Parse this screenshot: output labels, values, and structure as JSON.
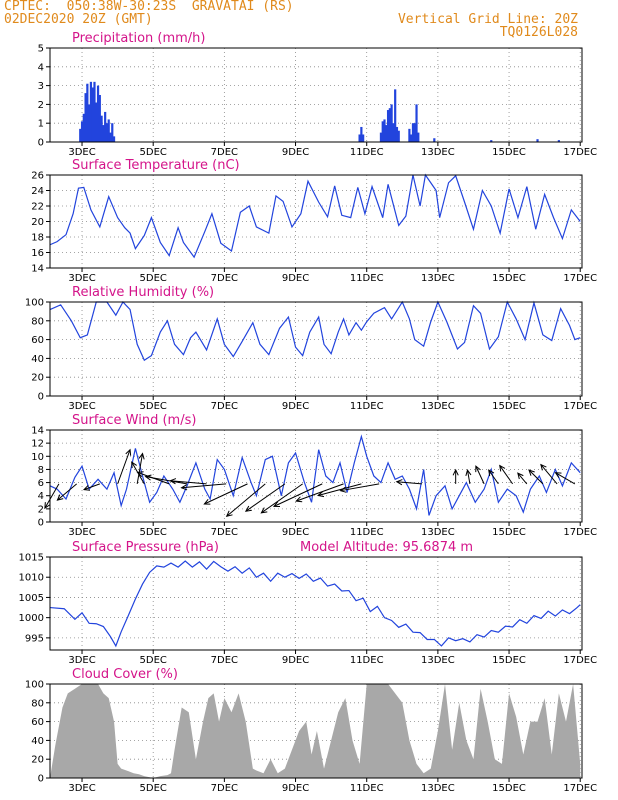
{
  "header": {
    "source": "CPTEC:",
    "coords": "050:38W-30:23S",
    "station": "GRAVATAI (RS)",
    "datetime": "02DEC2020 20Z (GMT)",
    "grid_note": "Vertical Grid Line: 20Z",
    "code": "TQ0126L028"
  },
  "colors": {
    "header": "#e08a1c",
    "panel_title": "#d4148a",
    "line": "#2244dd",
    "cloud": "#a8a8a8",
    "grid": "#888888"
  },
  "x_axis": {
    "start_day": 2.1,
    "end_day": 17.05,
    "labels": [
      {
        "day": 3,
        "label": "3DEC"
      },
      {
        "day": 5,
        "label": "5DEC"
      },
      {
        "day": 7,
        "label": "7DEC"
      },
      {
        "day": 9,
        "label": "9DEC"
      },
      {
        "day": 11,
        "label": "11DEC"
      },
      {
        "day": 13,
        "label": "13DEC"
      },
      {
        "day": 15,
        "label": "15DEC"
      },
      {
        "day": 17,
        "label": "17DEC"
      }
    ]
  },
  "chart_data": [
    {
      "id": "precip",
      "type": "bar",
      "title": "Precipitation (mm/h)",
      "ylim": [
        0,
        5
      ],
      "yticks": [
        0,
        1,
        2,
        3,
        4,
        5
      ],
      "grid": true,
      "x": [
        2.95,
        3.0,
        3.05,
        3.1,
        3.15,
        3.2,
        3.25,
        3.3,
        3.35,
        3.4,
        3.45,
        3.5,
        3.55,
        3.6,
        3.65,
        3.7,
        3.75,
        3.8,
        3.85,
        3.9,
        10.8,
        10.85,
        10.9,
        11.4,
        11.45,
        11.5,
        11.55,
        11.6,
        11.65,
        11.7,
        11.75,
        11.8,
        11.85,
        11.9,
        12.2,
        12.25,
        12.3,
        12.35,
        12.4,
        12.45,
        12.9,
        14.5,
        15.8,
        16.4
      ],
      "y": [
        0.7,
        1.1,
        1.5,
        2.6,
        3.1,
        2.0,
        3.2,
        2.9,
        3.2,
        2.1,
        3.0,
        2.5,
        1.4,
        0.9,
        1.6,
        1.0,
        1.2,
        0.5,
        1.0,
        0.3,
        0.4,
        0.8,
        0.4,
        0.5,
        1.1,
        1.2,
        0.9,
        1.7,
        1.8,
        2.0,
        1.0,
        2.8,
        0.8,
        0.6,
        0.7,
        0.4,
        1.0,
        1.0,
        2.0,
        0.5,
        0.2,
        0.1,
        0.15,
        0.1
      ]
    },
    {
      "id": "temp",
      "type": "line",
      "title": "Surface Temperature (nC)",
      "ylim": [
        14,
        26
      ],
      "yticks": [
        14,
        16,
        18,
        20,
        22,
        24,
        26
      ],
      "grid": true,
      "x": [
        2.1,
        2.3,
        2.55,
        2.75,
        2.9,
        3.05,
        3.25,
        3.5,
        3.75,
        4.0,
        4.2,
        4.35,
        4.5,
        4.75,
        4.95,
        5.2,
        5.45,
        5.7,
        5.85,
        6.15,
        6.45,
        6.65,
        6.9,
        7.2,
        7.45,
        7.7,
        7.9,
        8.25,
        8.45,
        8.65,
        8.9,
        9.15,
        9.35,
        9.65,
        9.9,
        10.1,
        10.3,
        10.55,
        10.75,
        10.95,
        11.15,
        11.45,
        11.6,
        11.9,
        12.1,
        12.3,
        12.5,
        12.65,
        12.8,
        12.95,
        13.05,
        13.3,
        13.5,
        13.75,
        14.0,
        14.25,
        14.5,
        14.75,
        15.0,
        15.25,
        15.5,
        15.75,
        16.0,
        16.25,
        16.5,
        16.75,
        17.0
      ],
      "y": [
        17.0,
        17.4,
        18.3,
        21.0,
        24.3,
        24.4,
        21.5,
        19.3,
        23.2,
        20.5,
        19.2,
        18.5,
        16.5,
        18.2,
        20.5,
        17.3,
        15.6,
        19.2,
        17.3,
        15.4,
        18.7,
        21.0,
        17.2,
        16.2,
        21.2,
        22.0,
        19.3,
        18.5,
        23.3,
        22.6,
        19.3,
        21.0,
        25.2,
        22.5,
        20.6,
        24.6,
        20.8,
        20.5,
        24.4,
        21.0,
        24.5,
        20.5,
        24.8,
        19.5,
        20.7,
        26.2,
        22.0,
        26.3,
        25.0,
        24.0,
        20.5,
        25.0,
        25.9,
        22.5,
        19.0,
        24.0,
        22.0,
        18.5,
        24.2,
        20.5,
        24.5,
        19.0,
        23.5,
        20.5,
        17.8,
        21.5,
        20.0
      ]
    },
    {
      "id": "rh",
      "type": "line",
      "title": "Relative Humidity (%)",
      "ylim": [
        0,
        100
      ],
      "yticks": [
        0,
        20,
        40,
        60,
        80,
        100
      ],
      "grid": true,
      "x": [
        2.1,
        2.4,
        2.7,
        2.95,
        3.15,
        3.4,
        3.7,
        3.95,
        4.15,
        4.35,
        4.55,
        4.75,
        4.95,
        5.2,
        5.4,
        5.6,
        5.85,
        6.05,
        6.2,
        6.5,
        6.8,
        7.0,
        7.25,
        7.5,
        7.8,
        8.0,
        8.25,
        8.55,
        8.8,
        9.0,
        9.2,
        9.4,
        9.65,
        9.8,
        10.0,
        10.2,
        10.35,
        10.5,
        10.7,
        10.85,
        11.0,
        11.2,
        11.5,
        11.7,
        12.0,
        12.2,
        12.35,
        12.6,
        12.8,
        13.0,
        13.25,
        13.55,
        13.75,
        14.0,
        14.2,
        14.45,
        14.7,
        14.95,
        15.2,
        15.45,
        15.7,
        15.95,
        16.2,
        16.45,
        16.7,
        16.85,
        17.0
      ],
      "y": [
        92,
        97,
        80,
        62,
        65,
        100,
        100,
        86,
        100,
        92,
        55,
        38,
        43,
        68,
        80,
        55,
        44,
        62,
        68,
        49,
        82,
        55,
        42,
        58,
        78,
        55,
        44,
        72,
        84,
        52,
        43,
        68,
        84,
        55,
        45,
        68,
        82,
        65,
        78,
        70,
        79,
        88,
        94,
        82,
        100,
        82,
        60,
        53,
        79,
        100,
        79,
        50,
        57,
        96,
        88,
        50,
        63,
        100,
        82,
        60,
        99,
        65,
        59,
        93,
        75,
        60,
        62
      ]
    },
    {
      "id": "wind",
      "type": "line",
      "title": "Surface Wind (m/s)",
      "ylim": [
        0,
        14
      ],
      "yticks": [
        0,
        2,
        4,
        6,
        8,
        10,
        12,
        14
      ],
      "grid": true,
      "x": [
        2.1,
        2.3,
        2.55,
        2.8,
        3.0,
        3.2,
        3.45,
        3.7,
        3.9,
        4.1,
        4.25,
        4.5,
        4.7,
        4.9,
        5.1,
        5.3,
        5.55,
        5.75,
        5.95,
        6.2,
        6.45,
        6.6,
        6.8,
        7.0,
        7.25,
        7.5,
        7.75,
        7.9,
        8.15,
        8.35,
        8.6,
        8.8,
        9.0,
        9.25,
        9.45,
        9.65,
        9.85,
        10.05,
        10.25,
        10.45,
        10.65,
        10.85,
        11.0,
        11.2,
        11.4,
        11.6,
        11.8,
        12.0,
        12.2,
        12.4,
        12.6,
        12.75,
        12.95,
        13.2,
        13.4,
        13.6,
        13.8,
        14.05,
        14.3,
        14.5,
        14.7,
        14.95,
        15.2,
        15.4,
        15.6,
        15.85,
        16.05,
        16.3,
        16.5,
        16.75,
        17.0
      ],
      "y": [
        5.5,
        5.0,
        3.5,
        6.8,
        8.5,
        5.0,
        6.5,
        5.0,
        7.5,
        2.5,
        5.0,
        11.2,
        7.0,
        3.0,
        4.5,
        7.0,
        5.0,
        3.0,
        5.5,
        9.0,
        5.0,
        3.5,
        9.5,
        8.0,
        4.0,
        9.8,
        6.0,
        4.0,
        9.5,
        10.0,
        4.0,
        9.0,
        10.5,
        6.0,
        3.0,
        11.0,
        7.0,
        6.0,
        9.0,
        4.5,
        9.0,
        13.0,
        10.0,
        7.0,
        6.0,
        9.0,
        6.5,
        7.0,
        5.0,
        2.0,
        8.0,
        1.0,
        4.0,
        5.5,
        2.0,
        4.0,
        6.0,
        3.0,
        5.0,
        8.0,
        3.0,
        5.0,
        4.0,
        1.5,
        5.0,
        7.0,
        4.5,
        8.0,
        5.5,
        9.0,
        7.5
      ]
    },
    {
      "id": "press",
      "type": "line",
      "title": "Surface Pressure (hPa)",
      "note": "Model Altitude: 95.6874 m",
      "ylim": [
        992,
        1015
      ],
      "yticks": [
        995,
        1000,
        1005,
        1010,
        1015
      ],
      "grid": true,
      "x": [
        2.1,
        2.5,
        2.8,
        3.0,
        3.2,
        3.4,
        3.6,
        3.8,
        3.95,
        4.1,
        4.3,
        4.5,
        4.7,
        4.9,
        5.1,
        5.3,
        5.5,
        5.7,
        5.9,
        6.1,
        6.3,
        6.5,
        6.7,
        6.9,
        7.1,
        7.3,
        7.5,
        7.7,
        7.9,
        8.1,
        8.3,
        8.5,
        8.7,
        8.9,
        9.1,
        9.3,
        9.5,
        9.7,
        9.9,
        10.1,
        10.3,
        10.5,
        10.7,
        10.9,
        11.1,
        11.3,
        11.5,
        11.7,
        11.9,
        12.1,
        12.3,
        12.5,
        12.7,
        12.9,
        13.1,
        13.3,
        13.5,
        13.7,
        13.9,
        14.1,
        14.3,
        14.5,
        14.7,
        14.9,
        15.1,
        15.3,
        15.5,
        15.7,
        15.9,
        16.1,
        16.3,
        16.5,
        16.7,
        16.9,
        17.0
      ],
      "y": [
        1002.5,
        1002.2,
        999.6,
        1001.2,
        998.6,
        998.5,
        997.8,
        995.3,
        993.0,
        996.5,
        1000.5,
        1004.6,
        1008.3,
        1011.2,
        1012.8,
        1012.5,
        1013.5,
        1012.5,
        1014.0,
        1012.5,
        1013.8,
        1012.0,
        1013.9,
        1012.6,
        1011.5,
        1012.6,
        1011.0,
        1012.3,
        1010.0,
        1011.0,
        1009.0,
        1011.0,
        1010.0,
        1010.9,
        1009.7,
        1010.8,
        1009.0,
        1009.8,
        1007.8,
        1008.3,
        1006.6,
        1006.7,
        1004.2,
        1004.8,
        1001.5,
        1002.8,
        1000.0,
        999.3,
        997.6,
        998.4,
        996.4,
        996.3,
        994.6,
        994.6,
        993.0,
        995.0,
        994.3,
        994.8,
        994.0,
        995.8,
        995.2,
        996.8,
        996.4,
        997.9,
        997.7,
        999.5,
        998.6,
        1000.5,
        999.8,
        1001.6,
        1000.4,
        1001.9,
        1001.0,
        1002.4,
        1003.2
      ]
    },
    {
      "id": "cloud",
      "type": "area",
      "title": "Cloud Cover (%)",
      "ylim": [
        0,
        100
      ],
      "yticks": [
        0,
        20,
        40,
        60,
        80,
        100
      ],
      "grid": true,
      "x": [
        2.1,
        2.25,
        2.45,
        2.6,
        2.8,
        3.0,
        3.2,
        3.45,
        3.6,
        3.75,
        3.9,
        4.0,
        4.1,
        4.25,
        4.45,
        4.6,
        4.75,
        5.0,
        5.2,
        5.4,
        5.5,
        5.6,
        5.8,
        6.0,
        6.2,
        6.4,
        6.55,
        6.7,
        6.85,
        7.0,
        7.2,
        7.4,
        7.6,
        7.8,
        7.9,
        8.1,
        8.3,
        8.5,
        8.7,
        8.9,
        9.1,
        9.3,
        9.45,
        9.6,
        9.8,
        10.0,
        10.2,
        10.4,
        10.6,
        10.8,
        11.0,
        11.2,
        11.4,
        11.6,
        11.8,
        12.0,
        12.2,
        12.4,
        12.6,
        12.8,
        13.0,
        13.2,
        13.4,
        13.6,
        13.8,
        14.0,
        14.2,
        14.4,
        14.6,
        14.8,
        15.0,
        15.2,
        15.4,
        15.6,
        15.8,
        16.0,
        16.2,
        16.4,
        16.6,
        16.8,
        17.0
      ],
      "y": [
        0,
        35,
        75,
        90,
        95,
        100,
        100,
        100,
        90,
        85,
        60,
        15,
        10,
        8,
        5,
        4,
        2,
        0,
        2,
        3,
        5,
        30,
        75,
        70,
        20,
        60,
        85,
        90,
        60,
        85,
        70,
        90,
        60,
        10,
        8,
        5,
        20,
        5,
        10,
        30,
        50,
        60,
        25,
        50,
        10,
        40,
        70,
        85,
        40,
        15,
        100,
        100,
        100,
        100,
        90,
        80,
        40,
        15,
        5,
        10,
        50,
        100,
        30,
        80,
        40,
        20,
        95,
        60,
        20,
        15,
        90,
        65,
        25,
        60,
        60,
        85,
        25,
        90,
        60,
        100,
        15
      ]
    }
  ],
  "wind_vectors": [
    {
      "day": 2.35,
      "dir": 240,
      "len": 1.0
    },
    {
      "day": 2.85,
      "dir": 220,
      "len": 0.9
    },
    {
      "day": 3.5,
      "dir": 200,
      "len": 0.6
    },
    {
      "day": 4.0,
      "dir": 70,
      "len": 1.3
    },
    {
      "day": 4.55,
      "dir": 80,
      "len": 1.1
    },
    {
      "day": 4.75,
      "dir": 120,
      "len": 0.9
    },
    {
      "day": 5.45,
      "dir": 160,
      "len": 1.2
    },
    {
      "day": 5.95,
      "dir": 170,
      "len": 1.5
    },
    {
      "day": 6.5,
      "dir": 175,
      "len": 1.3
    },
    {
      "day": 7.05,
      "dir": 185,
      "len": 1.6
    },
    {
      "day": 7.65,
      "dir": 205,
      "len": 1.7
    },
    {
      "day": 8.15,
      "dir": 220,
      "len": 1.8
    },
    {
      "day": 8.7,
      "dir": 215,
      "len": 1.7
    },
    {
      "day": 9.2,
      "dir": 215,
      "len": 1.8
    },
    {
      "day": 9.75,
      "dir": 205,
      "len": 1.9
    },
    {
      "day": 10.35,
      "dir": 200,
      "len": 1.8
    },
    {
      "day": 10.85,
      "dir": 195,
      "len": 1.6
    },
    {
      "day": 11.35,
      "dir": 190,
      "len": 1.4
    },
    {
      "day": 12.55,
      "dir": 175,
      "len": 0.9
    },
    {
      "day": 13.5,
      "dir": 90,
      "len": 0.5
    },
    {
      "day": 13.9,
      "dir": 100,
      "len": 0.5
    },
    {
      "day": 14.3,
      "dir": 115,
      "len": 0.7
    },
    {
      "day": 14.7,
      "dir": 125,
      "len": 0.6
    },
    {
      "day": 15.1,
      "dir": 125,
      "len": 0.8
    },
    {
      "day": 15.5,
      "dir": 130,
      "len": 0.5
    },
    {
      "day": 15.95,
      "dir": 135,
      "len": 0.7
    },
    {
      "day": 16.35,
      "dir": 130,
      "len": 0.9
    },
    {
      "day": 16.85,
      "dir": 150,
      "len": 0.8
    }
  ]
}
